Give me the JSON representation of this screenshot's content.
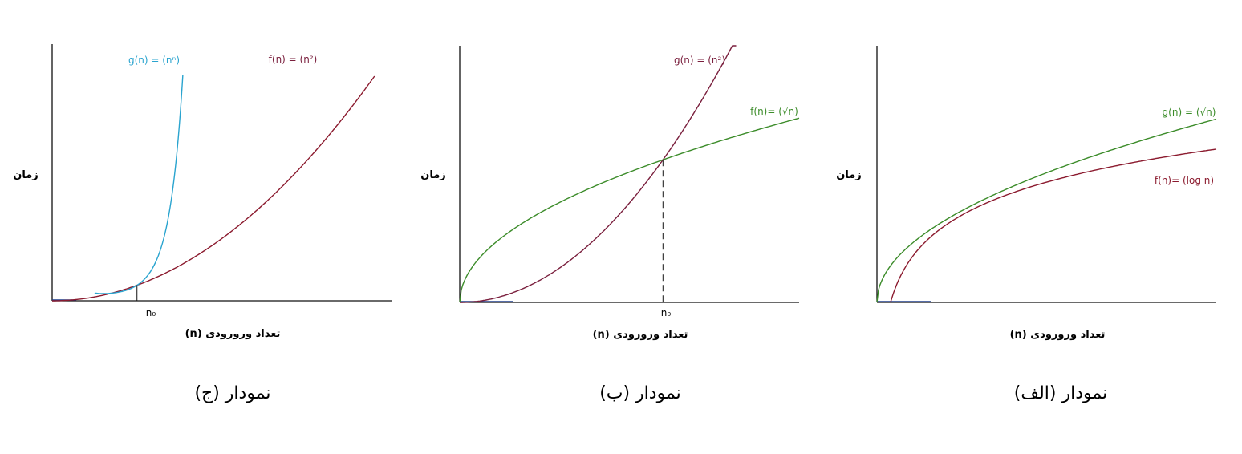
{
  "colors": {
    "red": "#8b1a2e",
    "green": "#3c8c2a",
    "blue": "#2aa4cf",
    "purple": "#7a1f3d",
    "axis": "#111111",
    "baseline": "#1f3d8a"
  },
  "chart_data": [
    {
      "type": "line",
      "caption": "نمودار (ج)",
      "ylabel": "زمان",
      "xlabel": "تعداد ورورودی (n)",
      "tick_label": "n₀",
      "xlim": [
        0,
        4
      ],
      "ylim": [
        0,
        16.5
      ],
      "crossing_x": 1,
      "grid": false,
      "series": [
        {
          "name": "f(n) = (n²)",
          "func": "square",
          "color": "#8b1a2e",
          "x_range": [
            0,
            3.8
          ]
        },
        {
          "name": "g(n) = (nⁿ)",
          "func": "power_self",
          "color": "#2aa4cf",
          "x_range": [
            0.5,
            1.54
          ]
        }
      ]
    },
    {
      "type": "line",
      "caption": "نمودار (ب)",
      "ylabel": "زمان",
      "xlabel": "تعداد ورورودی (n)",
      "tick_label": "n₀",
      "xlim": [
        0,
        1.67
      ],
      "ylim": [
        0,
        1.8
      ],
      "crossing_x": 1,
      "grid": false,
      "series": [
        {
          "name": "g(n) = (n²)",
          "func": "square",
          "color": "#7a1f3d",
          "x_range": [
            0,
            1.36
          ]
        },
        {
          "name": "f(n)= (√n)",
          "func": "sqrt",
          "color": "#3c8c2a",
          "x_range": [
            0,
            1.67
          ]
        }
      ]
    },
    {
      "type": "line",
      "caption": "نمودار (الف)",
      "ylabel": "زمان",
      "xlabel": "تعداد ورورودی (n)",
      "xlim": [
        0,
        100
      ],
      "ylim": [
        0,
        14
      ],
      "grid": false,
      "series": [
        {
          "name": "g(n) = (√n)",
          "func": "sqrt",
          "color": "#3c8c2a",
          "x_range": [
            0,
            100
          ]
        },
        {
          "name": "f(n)= (log n)",
          "func": "log",
          "color": "#8b1a2e",
          "x_range": [
            4,
            100
          ]
        }
      ]
    }
  ]
}
